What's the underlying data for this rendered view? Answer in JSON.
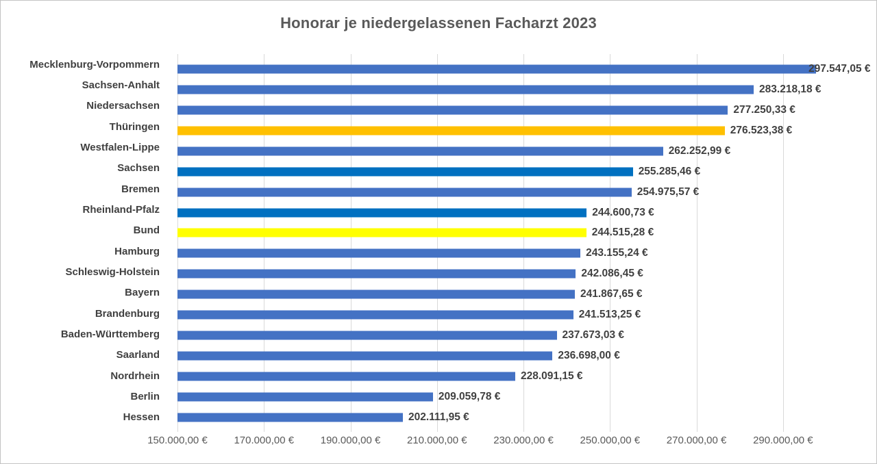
{
  "title": "Honorar je niedergelassenen Facharzt 2023",
  "chart_data": {
    "type": "bar",
    "orientation": "horizontal",
    "title": "Honorar je niedergelassenen Facharzt 2023",
    "xlabel": "",
    "ylabel": "",
    "xlim": [
      150000,
      300000
    ],
    "xticks": [
      150000,
      170000,
      190000,
      210000,
      230000,
      250000,
      270000,
      290000
    ],
    "xtick_labels": [
      "150.000,00 €",
      "170.000,00 €",
      "190.000,00 €",
      "210.000,00 €",
      "230.000,00 €",
      "250.000,00 €",
      "270.000,00 €",
      "290.000,00 €"
    ],
    "grid": true,
    "legend": false,
    "colors": {
      "default_blue": "#4472C4",
      "highlight_dark_blue": "#0070C0",
      "highlight_orange": "#FFC000",
      "highlight_yellow": "#FFFF00",
      "gridline": "#D9D9D9",
      "title_text": "#595959",
      "label_text": "#404040"
    },
    "bars": [
      {
        "category": "Mecklenburg-Vorpommern",
        "value": 297547.05,
        "value_label": "297.547,05 €",
        "color": "#4472C4"
      },
      {
        "category": "Sachsen-Anhalt",
        "value": 283218.18,
        "value_label": "283.218,18 €",
        "color": "#4472C4"
      },
      {
        "category": "Niedersachsen",
        "value": 277250.33,
        "value_label": "277.250,33 €",
        "color": "#4472C4"
      },
      {
        "category": "Thüringen",
        "value": 276523.38,
        "value_label": "276.523,38 €",
        "color": "#FFC000"
      },
      {
        "category": "Westfalen-Lippe",
        "value": 262252.99,
        "value_label": "262.252,99 €",
        "color": "#4472C4"
      },
      {
        "category": "Sachsen",
        "value": 255285.46,
        "value_label": "255.285,46 €",
        "color": "#0070C0"
      },
      {
        "category": "Bremen",
        "value": 254975.57,
        "value_label": "254.975,57 €",
        "color": "#4472C4"
      },
      {
        "category": "Rheinland-Pfalz",
        "value": 244600.73,
        "value_label": "244.600,73 €",
        "color": "#0070C0"
      },
      {
        "category": "Bund",
        "value": 244515.28,
        "value_label": "244.515,28 €",
        "color": "#FFFF00"
      },
      {
        "category": "Hamburg",
        "value": 243155.24,
        "value_label": "243.155,24 €",
        "color": "#4472C4"
      },
      {
        "category": "Schleswig-Holstein",
        "value": 242086.45,
        "value_label": "242.086,45 €",
        "color": "#4472C4"
      },
      {
        "category": "Bayern",
        "value": 241867.65,
        "value_label": "241.867,65 €",
        "color": "#4472C4"
      },
      {
        "category": "Brandenburg",
        "value": 241513.25,
        "value_label": "241.513,25 €",
        "color": "#4472C4"
      },
      {
        "category": "Baden-Württemberg",
        "value": 237673.03,
        "value_label": "237.673,03 €",
        "color": "#4472C4"
      },
      {
        "category": "Saarland",
        "value": 236698.0,
        "value_label": "236.698,00 €",
        "color": "#4472C4"
      },
      {
        "category": "Nordrhein",
        "value": 228091.15,
        "value_label": "228.091,15 €",
        "color": "#4472C4"
      },
      {
        "category": "Berlin",
        "value": 209059.78,
        "value_label": "209.059,78 €",
        "color": "#4472C4"
      },
      {
        "category": "Hessen",
        "value": 202111.95,
        "value_label": "202.111,95 €",
        "color": "#4472C4"
      }
    ]
  }
}
